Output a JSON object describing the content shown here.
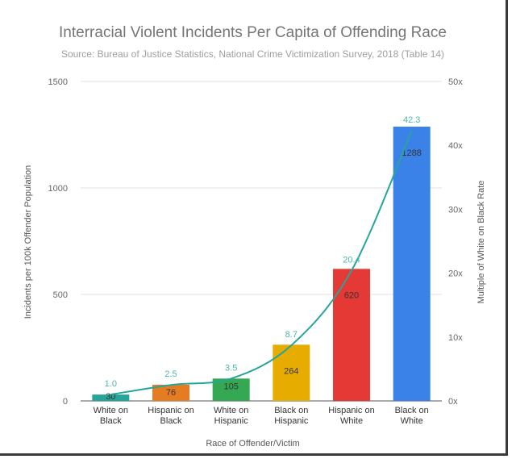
{
  "chart_data": {
    "type": "bar",
    "title": "Interracial Violent Incidents Per Capita of Offending Race",
    "subtitle": "Source: Bureau of Justice Statistics, National Crime Victimization Survey, 2018 (Table 14)",
    "xlabel": "Race of Offender/Victim",
    "ylabel": "Incidents per 100k Offender Population",
    "ylabel_right": "Multiple of White on Black Rate",
    "categories": [
      [
        "White on",
        "Black"
      ],
      [
        "Hispanic on",
        "Black"
      ],
      [
        "White on",
        "Hispanic"
      ],
      [
        "Black on",
        "Hispanic"
      ],
      [
        "Hispanic on",
        "White"
      ],
      [
        "Black on",
        "White"
      ]
    ],
    "series": [
      {
        "values": [
          30,
          76,
          105,
          264,
          620,
          1288
        ],
        "colors": [
          "#26a69a",
          "#e67c22",
          "#34a853",
          "#e6ac00",
          "#e53935",
          "#3b82e8"
        ]
      },
      {
        "values": [
          1.0,
          2.5,
          3.5,
          8.7,
          20.4,
          42.3
        ],
        "axis": "right",
        "type": "line",
        "color": "#26a69a"
      }
    ],
    "data_labels": [
      "30",
      "76",
      "105",
      "264",
      "620",
      "1288"
    ],
    "multiple_labels": [
      "1.0",
      "2.5",
      "3.5",
      "8.7",
      "20.4",
      "42.3"
    ],
    "ylim": [
      0,
      1500
    ],
    "yticks": [
      "0",
      "500",
      "1000",
      "1500"
    ],
    "ylim_right": [
      0,
      50
    ],
    "yticks_right": [
      "0x",
      "10x",
      "20x",
      "30x",
      "40x",
      "50x"
    ],
    "grid": true,
    "legend": "none"
  }
}
